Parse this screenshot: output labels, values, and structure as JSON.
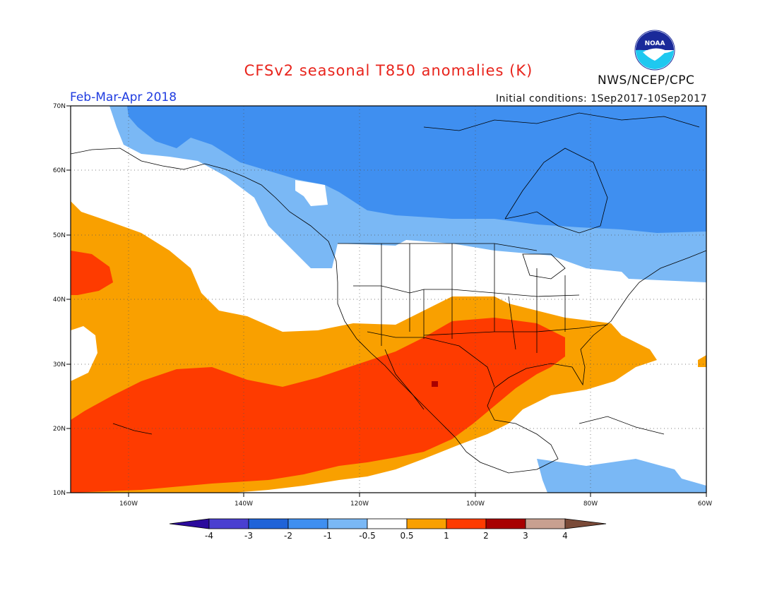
{
  "header": {
    "title": "CFSv2 seasonal T850 anomalies (K)",
    "period": "Feb-Mar-Apr 2018",
    "initial_conditions": "Initial conditions: 1Sep2017-10Sep2017",
    "agency": "NWS/NCEP/CPC",
    "logo_text": "NOAA"
  },
  "map": {
    "lat_labels": [
      "70N",
      "60N",
      "50N",
      "40N",
      "30N",
      "20N",
      "10N"
    ],
    "lon_labels": [
      "160W",
      "140W",
      "120W",
      "100W",
      "80W",
      "60W"
    ],
    "extent": {
      "lon": [
        -170,
        -60
      ],
      "lat": [
        10,
        70
      ]
    }
  },
  "colorbar": {
    "labels": [
      "-4",
      "-3",
      "-2",
      "-1",
      "-0.5",
      "0.5",
      "1",
      "2",
      "3",
      "4"
    ],
    "colors": [
      "#2b0a9c",
      "#4a3fd0",
      "#1f63d8",
      "#3f8ff0",
      "#7ab8f5",
      "#ffffff",
      "#f9a000",
      "#fe3b00",
      "#a80000",
      "#c8a090",
      "#7a4a38"
    ]
  },
  "colors": {
    "title": "#e8241c",
    "period": "#1f3ce0",
    "strong_negative": "#3f8ff0",
    "weak_negative": "#7ab8f5",
    "weak_positive": "#f9a000",
    "positive": "#fe3b00",
    "strong_positive": "#a80000"
  }
}
